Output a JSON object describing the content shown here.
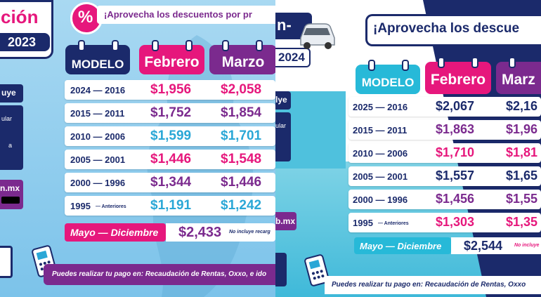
{
  "left": {
    "title_partial": "ción",
    "year": "2023",
    "side_partial_1": "uye",
    "side_partial_2": "ular",
    "side_partial_3": "a",
    "side_partial_4": "n.mx",
    "percent_icon": "%",
    "banner": "¡Aprovecha los descuentos por pr",
    "headers": {
      "model": "MODELO",
      "feb": "Febrero",
      "mar": "Marzo"
    },
    "rows": [
      {
        "year": "2024 — 2016",
        "feb": "$1,956",
        "mar": "$2,058",
        "style": "magenta"
      },
      {
        "year": "2015 — 2011",
        "feb": "$1,752",
        "mar": "$1,854",
        "style": "purple"
      },
      {
        "year": "2010 — 2006",
        "feb": "$1,599",
        "mar": "$1,701",
        "style": "cyan"
      },
      {
        "year": "2005 — 2001",
        "feb": "$1,446",
        "mar": "$1,548",
        "style": "magenta"
      },
      {
        "year": "2000 — 1996",
        "feb": "$1,344",
        "mar": "$1,446",
        "style": "purple"
      },
      {
        "year": "1995",
        "suffix": "— Anteriores",
        "feb": "$1,191",
        "mar": "$1,242",
        "style": "cyan"
      }
    ],
    "may_dec": {
      "label": "Mayo — Diciembre",
      "price": "$2,433",
      "note": "No incluye recarg"
    },
    "footer": "Puedes realizar tu pago en: Recaudación de Rentas, Oxxo, e ido"
  },
  "right": {
    "title_partial": "n-",
    "year": "2024",
    "side_partial_1": "lye",
    "side_partial_2": "ular",
    "side_partial_3": "b.mx",
    "banner": "¡Aprovecha los descue",
    "headers": {
      "model": "MODELO",
      "feb": "Febrero",
      "mar": "Marz"
    },
    "rows": [
      {
        "year": "2025 — 2016",
        "feb": "$2,067",
        "mar": "$2,16",
        "style": "navy"
      },
      {
        "year": "2015 — 2011",
        "feb": "$1,863",
        "mar": "$1,96",
        "style": "purple"
      },
      {
        "year": "2010 — 2006",
        "feb": "$1,710",
        "mar": "$1,81",
        "style": "magenta"
      },
      {
        "year": "2005 — 2001",
        "feb": "$1,557",
        "mar": "$1,65",
        "style": "navy"
      },
      {
        "year": "2000 — 1996",
        "feb": "$1,456",
        "mar": "$1,55",
        "style": "purple"
      },
      {
        "year": "1995",
        "suffix": "— Anteriores",
        "feb": "$1,303",
        "mar": "$1,35",
        "style": "magenta"
      }
    ],
    "may_dec": {
      "label": "Mayo — Diciembre",
      "price": "$2,544",
      "note": "No incluye"
    },
    "footer": "Puedes realizar tu pago en: Recaudación de Rentas, Oxxo"
  },
  "colors": {
    "navy": "#1b2a6b",
    "magenta": "#e6177c",
    "purple": "#7b2a8e",
    "cyan": "#2aa7d6",
    "teal": "#27b9d8"
  }
}
